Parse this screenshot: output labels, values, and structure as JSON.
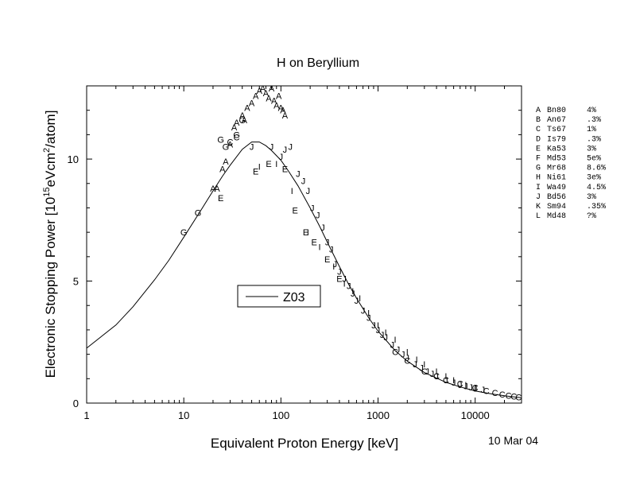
{
  "chart_data": {
    "type": "scatter",
    "title": "H on Beryllium",
    "xlabel": "Equivalent Proton Energy [keV]",
    "ylabel": {
      "prefix": "Electronic Stopping Power [10",
      "sup1": "15",
      "mid": "eVcm",
      "sup2": "2",
      "suffix": "/atom]"
    },
    "date_stamp": "10 Mar 04",
    "x_scale": "log",
    "xlim": [
      1,
      30000
    ],
    "ylim": [
      0,
      13
    ],
    "x_ticks": [
      {
        "value": 1,
        "label": "1"
      },
      {
        "value": 10,
        "label": "10"
      },
      {
        "value": 100,
        "label": "100"
      },
      {
        "value": 1000,
        "label": "1000"
      },
      {
        "value": 10000,
        "label": "10000"
      }
    ],
    "y_ticks": [
      {
        "value": 0,
        "label": "0"
      },
      {
        "value": 5,
        "label": "5"
      },
      {
        "value": 10,
        "label": "10"
      }
    ],
    "grid": false,
    "curve": {
      "name": "Z03",
      "x": [
        1,
        2,
        3,
        5,
        7,
        10,
        15,
        20,
        25,
        30,
        40,
        50,
        60,
        70,
        80,
        100,
        120,
        150,
        200,
        250,
        300,
        400,
        500,
        600,
        800,
        1000,
        1500,
        2000,
        3000,
        5000,
        7000,
        10000,
        15000,
        20000,
        30000
      ],
      "y": [
        2.25,
        3.2,
        3.95,
        5.05,
        5.85,
        6.8,
        7.9,
        8.7,
        9.3,
        9.75,
        10.4,
        10.7,
        10.7,
        10.55,
        10.35,
        9.95,
        9.5,
        8.9,
        8.0,
        7.25,
        6.6,
        5.6,
        4.85,
        4.3,
        3.5,
        2.95,
        2.15,
        1.72,
        1.25,
        0.85,
        0.66,
        0.5,
        0.37,
        0.3,
        0.22
      ]
    },
    "legend": {
      "position": "center",
      "label": "Z03"
    },
    "reference_table": [
      {
        "code": "A",
        "ref": "Bn80",
        "err": "4%"
      },
      {
        "code": "B",
        "ref": "An67",
        "err": ".3%"
      },
      {
        "code": "C",
        "ref": "Ts67",
        "err": "1%"
      },
      {
        "code": "D",
        "ref": "Is79",
        "err": ".3%"
      },
      {
        "code": "E",
        "ref": "Ka53",
        "err": "3%"
      },
      {
        "code": "F",
        "ref": "Md53",
        "err": "5e%"
      },
      {
        "code": "G",
        "ref": "Mr68",
        "err": "8.6%"
      },
      {
        "code": "H",
        "ref": "Ni61",
        "err": "3e%"
      },
      {
        "code": "I",
        "ref": "Wa49",
        "err": "4.5%"
      },
      {
        "code": "J",
        "ref": "Bd56",
        "err": "3%"
      },
      {
        "code": "K",
        "ref": "Sm94",
        "err": ".35%"
      },
      {
        "code": "L",
        "ref": "Md48",
        "err": "?%"
      }
    ],
    "series": [
      {
        "marker": "A",
        "x": [
          20,
          22,
          25,
          27,
          30,
          33,
          35,
          40,
          42,
          45,
          50,
          55,
          60,
          65,
          70,
          75,
          80,
          85,
          90,
          95,
          100,
          105,
          110
        ],
        "y": [
          8.8,
          8.8,
          9.6,
          9.9,
          10.6,
          11.3,
          11.5,
          11.8,
          11.6,
          12.1,
          12.3,
          12.6,
          12.8,
          12.9,
          12.7,
          12.5,
          12.9,
          12.4,
          12.2,
          12.6,
          12.1,
          12.0,
          11.8
        ]
      },
      {
        "marker": "G",
        "x": [
          10,
          14,
          24,
          27,
          35,
          40
        ],
        "y": [
          7.0,
          7.8,
          10.8,
          10.5,
          11.0,
          11.6
        ]
      },
      {
        "marker": "C",
        "x": [
          30,
          35,
          1500,
          2000,
          3000,
          4000,
          5000,
          7000,
          10000,
          13000,
          16000,
          19000,
          22000,
          25000,
          28000
        ],
        "y": [
          10.7,
          10.9,
          2.1,
          1.75,
          1.3,
          1.1,
          0.95,
          0.8,
          0.63,
          0.5,
          0.42,
          0.36,
          0.31,
          0.28,
          0.25
        ]
      },
      {
        "marker": "E",
        "x": [
          24,
          55,
          75,
          110,
          140,
          180,
          220,
          300,
          400
        ],
        "y": [
          8.4,
          9.5,
          9.8,
          9.6,
          7.9,
          7.0,
          6.6,
          5.9,
          5.1
        ]
      },
      {
        "marker": "I",
        "x": [
          60,
          90,
          130,
          190,
          250,
          350,
          450,
          550,
          650,
          800,
          1000,
          1200,
          1500,
          2000,
          2500,
          3000,
          4000,
          5000,
          6000,
          8000,
          10000
        ],
        "y": [
          9.7,
          9.8,
          8.7,
          7.0,
          6.4,
          5.6,
          4.9,
          4.6,
          4.3,
          3.7,
          3.2,
          2.9,
          2.6,
          2.1,
          1.8,
          1.6,
          1.3,
          1.1,
          0.95,
          0.75,
          0.6
        ]
      },
      {
        "marker": "J",
        "x": [
          50,
          80,
          100,
          110,
          125,
          150,
          170,
          190,
          210,
          240,
          270,
          300,
          330,
          360,
          400,
          450,
          500,
          550,
          600,
          700,
          800,
          900,
          1000,
          1100,
          1200,
          1400,
          1600,
          1800,
          2000,
          2400,
          2800,
          3200,
          3600,
          4000,
          5000,
          6000,
          7000,
          8000,
          9000,
          10000,
          12000
        ],
        "y": [
          10.5,
          10.5,
          10.1,
          10.4,
          10.5,
          9.4,
          9.1,
          8.7,
          8.0,
          7.7,
          7.2,
          6.6,
          6.3,
          5.7,
          5.4,
          5.1,
          4.8,
          4.5,
          4.2,
          3.8,
          3.5,
          3.2,
          3.0,
          2.8,
          2.7,
          2.4,
          2.2,
          2.0,
          1.85,
          1.6,
          1.45,
          1.3,
          1.2,
          1.1,
          0.95,
          0.85,
          0.75,
          0.7,
          0.65,
          0.6,
          0.55
        ]
      }
    ]
  }
}
